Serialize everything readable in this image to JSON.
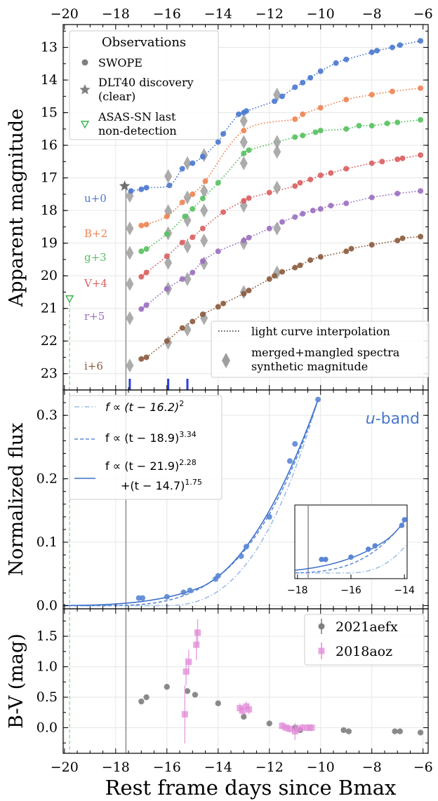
{
  "shared": {
    "x_ticks": [
      "−20",
      "−18",
      "−16",
      "−14",
      "−12",
      "−10",
      "−8",
      "−6"
    ],
    "x_tick_values": [
      -20,
      -18,
      -16,
      -14,
      -12,
      -10,
      -8,
      -6
    ],
    "xlabel": "Rest frame days since Bmax",
    "xlim": [
      -20.05,
      -5.8
    ],
    "discovery_line_x": -17.6,
    "asassn_line_x": -19.8
  },
  "chart_data": [
    {
      "type": "scatter",
      "panel": "top",
      "ylabel": "Apparent magnitude",
      "ylim": [
        23.5,
        12.3
      ],
      "y_inverted": true,
      "y_ticks": [
        "13",
        "14",
        "15",
        "16",
        "17",
        "18",
        "19",
        "20",
        "21",
        "22",
        "23"
      ],
      "y_tick_values": [
        13,
        14,
        15,
        16,
        17,
        18,
        19,
        20,
        21,
        22,
        23
      ],
      "legend_observations": {
        "title": "Observations",
        "entries": [
          "SWOPE",
          "DLT40 discovery (clear)",
          "ASAS-SN last non-detection"
        ],
        "entry_lines": [
          [
            "SWOPE"
          ],
          [
            "DLT40 discovery",
            "(clear)"
          ],
          [
            "ASAS-SN last",
            "non-detection"
          ]
        ],
        "location": "upper left"
      },
      "legend_lines": {
        "entries": [
          "light curve interpolation",
          "merged+mangled spectra synthetic magnitude"
        ],
        "entry_lines": [
          [
            "light curve interpolation"
          ],
          [
            "merged+mangled spectra",
            "synthetic magnitude"
          ]
        ],
        "location": "lower right"
      },
      "dlt40_discovery": {
        "x": -17.65,
        "y": 17.25
      },
      "asassn_nondetection": {
        "x": -19.8,
        "y": 20.7
      },
      "spectrum_epochs": [
        -17.45,
        -15.95,
        -15.2
      ],
      "series": [
        {
          "name": "u+0",
          "color": "#4a78cf",
          "x": [
            -17.4,
            -17.0,
            -16.8,
            -15.9,
            -15.4,
            -15.0,
            -14.6,
            -14.0,
            -13.8,
            -13.2,
            -13.0,
            -12.9,
            -11.8,
            -11.5,
            -11.0,
            -10.7,
            -10.4,
            -10.0,
            -9.4,
            -9.0,
            -8.0,
            -7.8,
            -7.2,
            -6.9,
            -6.1
          ],
          "y": [
            17.4,
            17.35,
            17.3,
            17.23,
            16.72,
            16.55,
            16.35,
            15.9,
            15.65,
            15.05,
            15.0,
            14.95,
            14.65,
            14.5,
            14.22,
            14.08,
            13.93,
            13.73,
            13.48,
            13.37,
            13.15,
            13.1,
            13.0,
            12.93,
            12.8
          ]
        },
        {
          "name": "B+2",
          "color": "#ee8452",
          "x": [
            -17.0,
            -16.8,
            -16.0,
            -15.4,
            -15.0,
            -14.5,
            -13.0,
            -11.0,
            -10.7,
            -10.0,
            -9.0,
            -8.0,
            -7.2,
            -6.1
          ],
          "y": [
            18.46,
            18.43,
            18.18,
            17.75,
            17.5,
            17.1,
            15.55,
            15.2,
            15.05,
            14.85,
            14.6,
            14.45,
            14.35,
            14.25
          ]
        },
        {
          "name": "g+3",
          "color": "#56c15f",
          "x": [
            -17.0,
            -16.8,
            -16.0,
            -15.3,
            -15.0,
            -14.6,
            -14.0,
            -13.0,
            -12.8,
            -11.0,
            -10.7,
            -10.2,
            -10.0,
            -9.0,
            -8.5,
            -8.0,
            -7.4,
            -7.0,
            -6.1
          ],
          "y": [
            19.25,
            19.18,
            18.72,
            18.18,
            17.95,
            17.63,
            17.15,
            16.25,
            16.15,
            15.75,
            15.7,
            15.6,
            15.55,
            15.5,
            15.4,
            15.4,
            15.33,
            15.3,
            15.22
          ]
        },
        {
          "name": "V+4",
          "color": "#d95f5f",
          "x": [
            -17.0,
            -16.8,
            -16.0,
            -15.4,
            -15.0,
            -14.6,
            -13.8,
            -13.0,
            -12.8,
            -12.0,
            -11.0,
            -10.8,
            -10.4,
            -10.0,
            -9.6,
            -9.0,
            -8.0,
            -7.6,
            -7.0,
            -6.8,
            -6.1
          ],
          "y": [
            20.03,
            19.9,
            19.4,
            18.98,
            18.82,
            18.55,
            18.05,
            17.7,
            17.62,
            17.45,
            17.25,
            17.15,
            17.05,
            16.92,
            16.85,
            16.72,
            16.55,
            16.5,
            16.43,
            16.4,
            16.3
          ]
        },
        {
          "name": "r+5",
          "color": "#9b6fc0",
          "x": [
            -17.0,
            -16.8,
            -16.0,
            -15.4,
            -15.0,
            -14.6,
            -14.0,
            -13.0,
            -12.8,
            -12.0,
            -11.5,
            -11.0,
            -10.7,
            -10.3,
            -10.0,
            -9.6,
            -9.0,
            -8.0,
            -7.0,
            -6.1
          ],
          "y": [
            21.02,
            20.9,
            20.4,
            20.1,
            19.9,
            19.55,
            19.25,
            18.92,
            18.83,
            18.55,
            18.35,
            18.2,
            18.1,
            18.0,
            17.95,
            17.85,
            17.78,
            17.6,
            17.48,
            17.4
          ]
        },
        {
          "name": "i+6",
          "color": "#8c5a3c",
          "x": [
            -17.0,
            -16.8,
            -16.0,
            -15.4,
            -15.0,
            -14.6,
            -14.0,
            -13.8,
            -13.0,
            -12.8,
            -12.0,
            -11.8,
            -11.5,
            -11.0,
            -10.8,
            -10.4,
            -10.0,
            -9.0,
            -8.8,
            -8.0,
            -7.0,
            -6.8,
            -6.1
          ],
          "y": [
            22.55,
            22.5,
            22.0,
            21.6,
            21.4,
            21.18,
            20.95,
            20.85,
            20.55,
            20.45,
            20.1,
            20.0,
            19.88,
            19.75,
            19.68,
            19.52,
            19.42,
            19.25,
            19.17,
            19.05,
            18.92,
            18.85,
            18.8
          ]
        }
      ],
      "spectra_synthetic": {
        "x": [
          -17.45,
          -15.95,
          -15.2,
          -14.55,
          -13.0,
          -11.7
        ],
        "u+0": [
          17.55,
          16.95,
          16.55,
          16.3,
          15.25,
          14.45
        ],
        "B+2": [
          18.55,
          18.02,
          17.6,
          17.4,
          15.9,
          15.9
        ],
        "g+3": [
          19.3,
          18.7,
          18.3,
          18.0,
          16.55,
          16.2
        ],
        "V+4": [
          20.25,
          19.6,
          19.1,
          18.92,
          17.85,
          17.3
        ],
        "r+5": [
          21.3,
          20.4,
          20.1,
          19.62,
          19.0,
          18.55
        ],
        "i+6": [
          22.75,
          22.05,
          21.65,
          21.3,
          20.5,
          19.9
        ]
      }
    },
    {
      "type": "line",
      "panel": "middle",
      "ylabel": "Normalized flux",
      "ylim": [
        -0.005,
        0.34
      ],
      "y_ticks": [
        "0.0",
        "0.1",
        "0.2",
        "0.3"
      ],
      "y_tick_values": [
        0,
        0.1,
        0.2,
        0.3
      ],
      "annotation": "u-band",
      "annotation_prefix": "u",
      "annotation_suffix": "-band",
      "legend": {
        "entries": [
          "f ∝ (t − 16.2)^2",
          "f ∝ (t − 18.9)^3.34",
          "f ∝ (t − 21.9)^2.28 + (t − 14.7)^1.75"
        ],
        "fit1_text": "f ∝ (t − 16.2)",
        "fit1_exp": "2",
        "fit2_text": "f ∝ (t − 18.9)",
        "fit2_exp": "3.34",
        "fit3_text": "f ∝ (t − 21.9)",
        "fit3_exp": "2.28",
        "fit3_text2": "+(t − 14.7)",
        "fit3_exp2": "1.75",
        "location": "upper left"
      },
      "data_points": {
        "x": [
          -17.1,
          -16.95,
          -16.0,
          -15.35,
          -15.1,
          -14.1,
          -14.0,
          -13.1,
          -12.9,
          -12.0,
          -11.2,
          -11.0,
          -10.1
        ],
        "y": [
          0.012,
          0.012,
          0.014,
          0.021,
          0.024,
          0.042,
          0.047,
          0.078,
          0.093,
          0.14,
          0.228,
          0.255,
          0.325
        ]
      },
      "inset": {
        "xlim": [
          -18.1,
          -13.9
        ],
        "ylim": [
          -0.005,
          0.06
        ],
        "x_ticks": [
          "−18",
          "−16",
          "−14"
        ],
        "x_tick_values": [
          -18,
          -16,
          -14
        ]
      }
    },
    {
      "type": "scatter",
      "panel": "bottom",
      "ylabel": "B-V (mag)",
      "ylim": [
        -0.42,
        1.95
      ],
      "y_ticks": [
        "0.0",
        "0.5",
        "1.0",
        "1.5"
      ],
      "y_tick_values": [
        0,
        0.5,
        1.0,
        1.5
      ],
      "legend_location": "upper right",
      "series": [
        {
          "name": "2021aefx",
          "color": "#7f7f7f",
          "marker": "circle",
          "x": [
            -17.0,
            -16.8,
            -16.0,
            -15.2,
            -14.9,
            -14.0,
            -13.0,
            -12.0,
            -11.0,
            -10.8,
            -9.1,
            -8.9,
            -7.1,
            -6.9,
            -6.1
          ],
          "y": [
            0.43,
            0.5,
            0.67,
            0.6,
            0.54,
            0.4,
            0.18,
            0.07,
            0.0,
            -0.04,
            -0.04,
            -0.06,
            -0.06,
            -0.06,
            -0.08
          ],
          "yerr": [
            0.02,
            0.02,
            0.02,
            0.02,
            0.02,
            0.02,
            0.02,
            0.02,
            0.02,
            0.02,
            0.02,
            0.02,
            0.02,
            0.02,
            0.02
          ]
        },
        {
          "name": "2018aoz",
          "color": "#e28ad8",
          "marker": "square",
          "x": [
            -15.3,
            -15.25,
            -15.15,
            -14.85,
            -14.8,
            -13.15,
            -13.05,
            -12.9,
            -12.8,
            -11.5,
            -11.35,
            -11.2,
            -11.0,
            -10.9,
            -10.7,
            -10.5,
            -10.35
          ],
          "y": [
            0.22,
            0.92,
            1.08,
            1.36,
            1.56,
            0.32,
            0.28,
            0.35,
            0.3,
            0.03,
            0.0,
            -0.02,
            -0.06,
            -0.02,
            0.0,
            0.0,
            0.0
          ],
          "yerr": [
            0.48,
            0.22,
            0.2,
            0.25,
            0.22,
            0.08,
            0.08,
            0.08,
            0.08,
            0.06,
            0.06,
            0.06,
            0.14,
            0.08,
            0.06,
            0.06,
            0.06
          ]
        }
      ]
    }
  ]
}
